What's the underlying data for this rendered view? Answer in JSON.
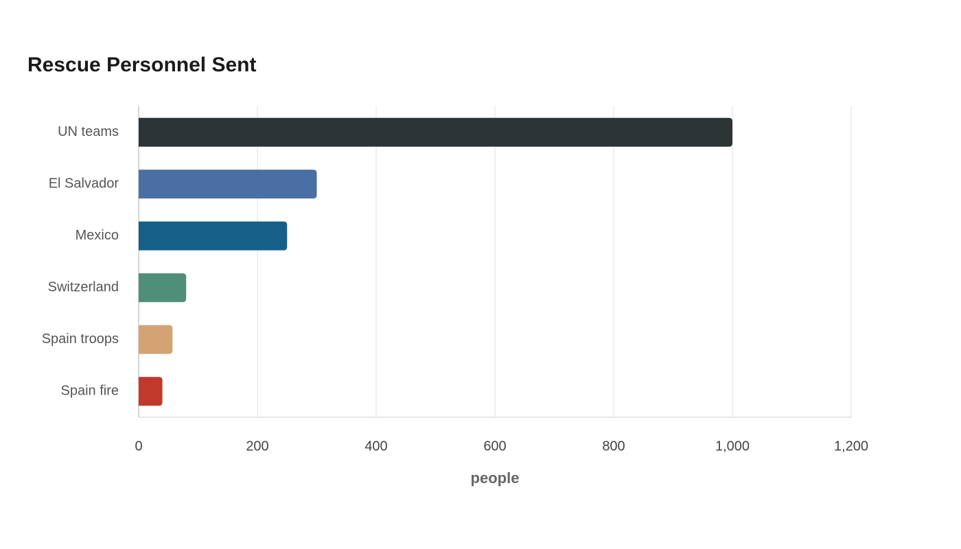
{
  "chart_data": {
    "type": "bar",
    "orientation": "horizontal",
    "title": "Rescue Personnel Sent",
    "x_label": "people",
    "categories": [
      "UN teams",
      "El Salvador",
      "Mexico",
      "Switzerland",
      "Spain troops",
      "Spain fire"
    ],
    "values": [
      1000,
      300,
      250,
      80,
      57,
      40
    ],
    "colors": [
      "#2d3436",
      "#4a6fa5",
      "#166088",
      "#4f8f7a",
      "#d4a373",
      "#c0392b"
    ],
    "xlim": [
      0,
      1200
    ],
    "xticks": [
      0,
      200,
      400,
      600,
      800,
      {
        "value": 1000,
        "label": "1,000"
      },
      {
        "value": 1200,
        "label": "1,200"
      }
    ],
    "grid": true
  }
}
